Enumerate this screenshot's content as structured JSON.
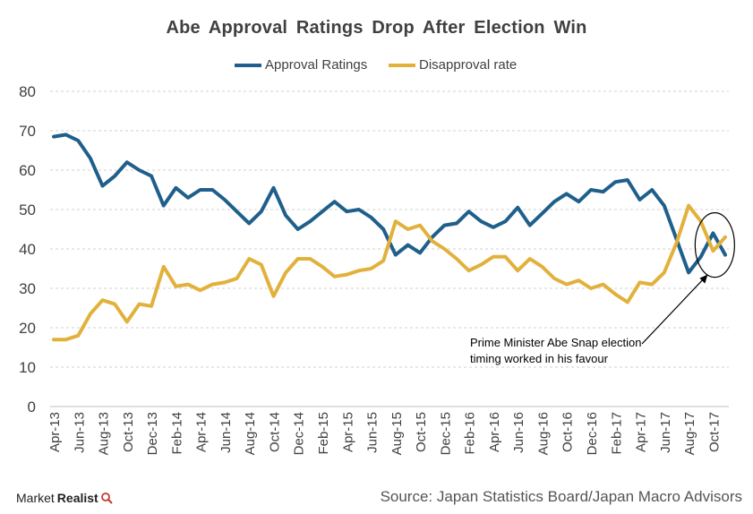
{
  "chart_data": {
    "type": "line",
    "title": "Abe Approval Ratings Drop After Election Win",
    "xlabel": "",
    "ylabel": "",
    "ylim": [
      0,
      80
    ],
    "yticks": [
      0,
      10,
      20,
      30,
      40,
      50,
      60,
      70,
      80
    ],
    "grid": true,
    "legend_position": "top-center",
    "x_tick_labels": [
      "Apr-13",
      "Jun-13",
      "Aug-13",
      "Oct-13",
      "Dec-13",
      "Feb-14",
      "Apr-14",
      "Jun-14",
      "Aug-14",
      "Oct-14",
      "Dec-14",
      "Feb-15",
      "Apr-15",
      "Jun-15",
      "Aug-15",
      "Oct-15",
      "Dec-15",
      "Feb-16",
      "Apr-16",
      "Jun-16",
      "Aug-16",
      "Oct-16",
      "Dec-16",
      "Feb-17",
      "Apr-17",
      "Jun-17",
      "Aug-17",
      "Oct-17"
    ],
    "series": [
      {
        "name": "Approval Ratings",
        "color": "#1f5f8b",
        "values": [
          68.5,
          69,
          67.5,
          63,
          56,
          58.5,
          62,
          60,
          58.5,
          51,
          55.5,
          53,
          55,
          55,
          52.5,
          49.5,
          46.5,
          49.5,
          55.5,
          48.5,
          45,
          47,
          49.5,
          52,
          49.5,
          50,
          48,
          45,
          38.5,
          41,
          39,
          43,
          46,
          46.5,
          49.5,
          47,
          45.5,
          47,
          50.5,
          46,
          49,
          52,
          54,
          52,
          55,
          54.5,
          57,
          57.5,
          52.5,
          55,
          51,
          42.5,
          34,
          38,
          44,
          38.5
        ]
      },
      {
        "name": "Disapproval rate",
        "color": "#e2b13c",
        "values": [
          17,
          17,
          18,
          23.5,
          27,
          26,
          21.5,
          26,
          25.5,
          35.5,
          30.5,
          31,
          29.5,
          31,
          31.5,
          32.5,
          37.5,
          36,
          28,
          34,
          37.5,
          37.5,
          35.5,
          33,
          33.5,
          34.5,
          35,
          37,
          47,
          45,
          46,
          42,
          40,
          37.5,
          34.5,
          36,
          38,
          38,
          34.5,
          37.5,
          35.5,
          32.5,
          31,
          32,
          30,
          31,
          28.5,
          26.5,
          31.5,
          31,
          34,
          41.5,
          51,
          47,
          39.5,
          43
        ]
      }
    ],
    "annotation": "Prime Minister Abe Snap election timing worked in his favour"
  },
  "legend": {
    "approval_label": "Approval Ratings",
    "disapproval_label": "Disapproval rate"
  },
  "annotation_lines": [
    "Prime Minister Abe Snap election",
    "timing worked in his favour"
  ],
  "brand": {
    "name_part1": "Market",
    "name_part2": "Realist"
  },
  "source": "Source: Japan Statistics Board/Japan Macro Advisors"
}
